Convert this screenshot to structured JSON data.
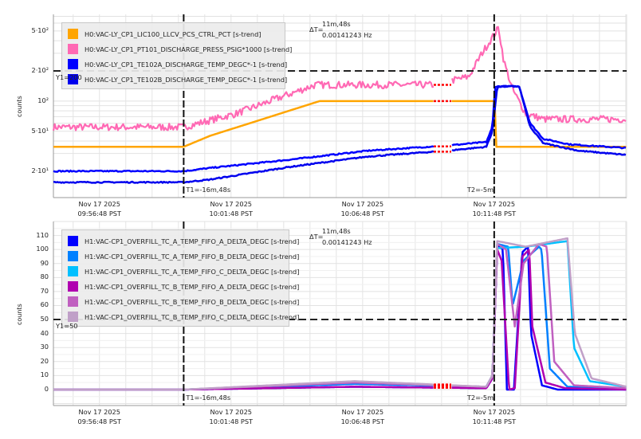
{
  "chart_data": [
    {
      "type": "line",
      "yscale": "log",
      "ylabel": "counts",
      "ylim": [
        10.9,
        733
      ],
      "xlim": [
        "09:55:03",
        "10:16:50"
      ],
      "grid": true,
      "legend_position": "top-left",
      "x_ticks": [
        {
          "date": "Nov 17 2025",
          "time": "09:56:48 PST",
          "t": "09:56:48"
        },
        {
          "date": "Nov 17 2025",
          "time": "10:01:48 PST",
          "t": "10:01:48"
        },
        {
          "date": "Nov 17 2025",
          "time": "10:06:48 PST",
          "t": "10:06:48"
        },
        {
          "date": "Nov 17 2025",
          "time": "10:11:48 PST",
          "t": "10:11:48"
        }
      ],
      "y_ticks": [
        {
          "label": "5·10²",
          "v": 500
        },
        {
          "label": "2·10²",
          "v": 200
        },
        {
          "label": "10²",
          "v": 100
        },
        {
          "label": "5·10¹",
          "v": 50
        },
        {
          "label": "2·10¹",
          "v": 20
        }
      ],
      "cursors": {
        "t1": "10:00:00",
        "t2": "10:11:48",
        "y1": 200,
        "t1_label": "T1=-16m,48s",
        "t2_label": "T2=-5m",
        "y1_label": "Y1=200",
        "dt_label": "ΔT=",
        "dt_value": "11m,48s",
        "dt_freq": "0.00141243 Hz"
      },
      "gap": [
        "10:09:30",
        "10:10:10"
      ],
      "series": [
        {
          "name": "H0:VAC-LY_CP1_LIC100_LLCV_PCS_CTRL_PCT [s-trend]",
          "color": "#ffa500",
          "noise": 0,
          "points": [
            [
              "09:55:03",
              35
            ],
            [
              "10:00:00",
              35
            ],
            [
              "10:01:00",
              45
            ],
            [
              "10:02:30",
              60
            ],
            [
              "10:04:00",
              80
            ],
            [
              "10:05:10",
              100
            ],
            [
              "10:11:50",
              100
            ],
            [
              "10:11:52",
              35
            ],
            [
              "10:16:50",
              35
            ]
          ]
        },
        {
          "name": "H0:VAC-LY_CP1_PT101_DISCHARGE_PRESS_PSIG*1000 [s-trend]",
          "color": "#ff69b4",
          "noise": 0.035,
          "points": [
            [
              "09:55:03",
              55
            ],
            [
              "10:00:00",
              55
            ],
            [
              "10:02:00",
              75
            ],
            [
              "10:03:30",
              105
            ],
            [
              "10:05:00",
              145
            ],
            [
              "10:09:30",
              145
            ],
            [
              "10:10:10",
              160
            ],
            [
              "10:10:50",
              175
            ],
            [
              "10:11:20",
              300
            ],
            [
              "10:11:48",
              460
            ],
            [
              "10:11:58",
              540
            ],
            [
              "10:12:10",
              250
            ],
            [
              "10:12:30",
              130
            ],
            [
              "10:13:00",
              75
            ],
            [
              "10:13:40",
              66
            ],
            [
              "10:16:50",
              66
            ]
          ]
        },
        {
          "name": "H0:VAC-LY_CP1_TE102A_DISCHARGE_TEMP_DEGC*-1 [s-trend]",
          "color": "#0000ff",
          "noise": 0.006,
          "points": [
            [
              "09:55:03",
              20
            ],
            [
              "10:00:00",
              20
            ],
            [
              "10:01:00",
              21.5
            ],
            [
              "10:04:00",
              26
            ],
            [
              "10:07:00",
              32
            ],
            [
              "10:10:00",
              36
            ],
            [
              "10:11:30",
              39
            ],
            [
              "10:11:44",
              55
            ],
            [
              "10:11:50",
              140
            ],
            [
              "10:12:45",
              140
            ],
            [
              "10:13:10",
              60
            ],
            [
              "10:13:40",
              42
            ],
            [
              "10:14:40",
              37
            ],
            [
              "10:16:50",
              34
            ]
          ]
        },
        {
          "name": "H0:VAC-LY_CP1_TE102B_DISCHARGE_TEMP_DEGC*-1 [s-trend]",
          "color": "#0000ee",
          "noise": 0.006,
          "points": [
            [
              "09:55:03",
              15.5
            ],
            [
              "10:00:00",
              15.5
            ],
            [
              "10:01:00",
              16.5
            ],
            [
              "10:04:00",
              22
            ],
            [
              "10:07:00",
              28
            ],
            [
              "10:10:00",
              32
            ],
            [
              "10:11:30",
              35
            ],
            [
              "10:11:44",
              50
            ],
            [
              "10:11:55",
              140
            ],
            [
              "10:12:45",
              140
            ],
            [
              "10:13:10",
              55
            ],
            [
              "10:13:40",
              38
            ],
            [
              "10:15:00",
              32
            ],
            [
              "10:16:50",
              29
            ]
          ]
        }
      ]
    },
    {
      "type": "line",
      "yscale": "linear",
      "ylabel": "counts",
      "ylim": [
        -11.4,
        120
      ],
      "xlim": [
        "09:55:03",
        "10:16:50"
      ],
      "grid": true,
      "legend_position": "top-left",
      "x_ticks": [
        {
          "date": "Nov 17 2025",
          "time": "09:56:48 PST",
          "t": "09:56:48"
        },
        {
          "date": "Nov 17 2025",
          "time": "10:01:48 PST",
          "t": "10:01:48"
        },
        {
          "date": "Nov 17 2025",
          "time": "10:06:48 PST",
          "t": "10:06:48"
        },
        {
          "date": "Nov 17 2025",
          "time": "10:11:48 PST",
          "t": "10:11:48"
        }
      ],
      "y_ticks": [
        {
          "label": "110",
          "v": 110
        },
        {
          "label": "100",
          "v": 100
        },
        {
          "label": "90",
          "v": 90
        },
        {
          "label": "80",
          "v": 80
        },
        {
          "label": "70",
          "v": 70
        },
        {
          "label": "60",
          "v": 60
        },
        {
          "label": "50",
          "v": 50
        },
        {
          "label": "40",
          "v": 40
        },
        {
          "label": "30",
          "v": 30
        },
        {
          "label": "20",
          "v": 20
        },
        {
          "label": "10",
          "v": 10
        },
        {
          "label": "0",
          "v": 0
        }
      ],
      "cursors": {
        "t1": "10:00:00",
        "t2": "10:11:48",
        "y1": 50,
        "t1_label": "T1=-16m,48s",
        "t2_label": "T2=-5m",
        "y1_label": "Y1=50",
        "dt_label": "ΔT=",
        "dt_value": "11m,48s",
        "dt_freq": "0.00141243 Hz"
      },
      "gap": [
        "10:09:30",
        "10:10:10"
      ],
      "series": [
        {
          "name": "H1:VAC-CP1_OVERFILL_TC_A_TEMP_FIFO_A_DELTA_DEGC [s-trend]",
          "color": "#0000ff",
          "noise": 0,
          "points": [
            [
              "09:55:03",
              0
            ],
            [
              "10:00:00",
              0
            ],
            [
              "10:06:30",
              2
            ],
            [
              "10:11:30",
              1
            ],
            [
              "10:11:44",
              8
            ],
            [
              "10:11:55",
              103
            ],
            [
              "10:12:08",
              100
            ],
            [
              "10:12:17",
              0
            ],
            [
              "10:12:33",
              0
            ],
            [
              "10:12:52",
              98
            ],
            [
              "10:13:05",
              102
            ],
            [
              "10:13:12",
              40
            ],
            [
              "10:13:37",
              3
            ],
            [
              "10:14:13",
              0
            ],
            [
              "10:16:50",
              0
            ]
          ]
        },
        {
          "name": "H1:VAC-CP1_OVERFILL_TC_A_TEMP_FIFO_B_DELTA_DEGC [s-trend]",
          "color": "#0080ff",
          "noise": 0,
          "points": [
            [
              "09:55:03",
              0
            ],
            [
              "10:00:00",
              0
            ],
            [
              "10:06:30",
              4
            ],
            [
              "10:11:30",
              2
            ],
            [
              "10:11:44",
              10
            ],
            [
              "10:11:55",
              104
            ],
            [
              "10:12:20",
              102
            ],
            [
              "10:12:30",
              60
            ],
            [
              "10:12:55",
              92
            ],
            [
              "10:13:30",
              102
            ],
            [
              "10:13:36",
              100
            ],
            [
              "10:13:55",
              15
            ],
            [
              "10:14:35",
              2
            ],
            [
              "10:16:50",
              1
            ]
          ]
        },
        {
          "name": "H1:VAC-CP1_OVERFILL_TC_A_TEMP_FIFO_C_DELTA_DEGC [s-trend]",
          "color": "#00c0ff",
          "noise": 0,
          "points": [
            [
              "09:55:03",
              0
            ],
            [
              "10:00:00",
              0
            ],
            [
              "10:06:30",
              5
            ],
            [
              "10:11:30",
              2
            ],
            [
              "10:11:44",
              10
            ],
            [
              "10:11:55",
              101
            ],
            [
              "10:13:00",
              102
            ],
            [
              "10:14:35",
              106
            ],
            [
              "10:14:50",
              30
            ],
            [
              "10:15:26",
              6
            ],
            [
              "10:16:50",
              2
            ]
          ]
        },
        {
          "name": "H1:VAC-CP1_OVERFILL_TC_B_TEMP_FIFO_A_DELTA_DEGC [s-trend]",
          "color": "#b000b0",
          "noise": 0,
          "points": [
            [
              "09:55:03",
              0
            ],
            [
              "10:00:00",
              0
            ],
            [
              "10:06:30",
              2
            ],
            [
              "10:11:30",
              1
            ],
            [
              "10:11:44",
              8
            ],
            [
              "10:11:55",
              100
            ],
            [
              "10:12:05",
              92
            ],
            [
              "10:12:22",
              0
            ],
            [
              "10:12:35",
              1
            ],
            [
              "10:12:52",
              95
            ],
            [
              "10:13:08",
              100
            ],
            [
              "10:13:15",
              45
            ],
            [
              "10:13:45",
              5
            ],
            [
              "10:14:30",
              1
            ],
            [
              "10:16:50",
              0
            ]
          ]
        },
        {
          "name": "H1:VAC-CP1_OVERFILL_TC_B_TEMP_FIFO_B_DELTA_DEGC [s-trend]",
          "color": "#c060c0",
          "noise": 0,
          "points": [
            [
              "09:55:03",
              0
            ],
            [
              "10:00:00",
              0
            ],
            [
              "10:06:30",
              5
            ],
            [
              "10:11:30",
              2
            ],
            [
              "10:11:44",
              10
            ],
            [
              "10:11:55",
              104
            ],
            [
              "10:12:15",
              100
            ],
            [
              "10:12:35",
              45
            ],
            [
              "10:12:55",
              90
            ],
            [
              "10:13:30",
              104
            ],
            [
              "10:13:48",
              102
            ],
            [
              "10:14:05",
              20
            ],
            [
              "10:14:50",
              3
            ],
            [
              "10:16:50",
              1
            ]
          ]
        },
        {
          "name": "H1:VAC-CP1_OVERFILL_TC_B_TEMP_FIFO_C_DELTA_DEGC [s-trend]",
          "color": "#c0a0c8",
          "noise": 0,
          "points": [
            [
              "09:55:03",
              0
            ],
            [
              "10:00:00",
              0
            ],
            [
              "10:06:30",
              6
            ],
            [
              "10:11:30",
              2
            ],
            [
              "10:11:44",
              10
            ],
            [
              "10:11:55",
              106
            ],
            [
              "10:13:00",
              102
            ],
            [
              "10:14:35",
              108
            ],
            [
              "10:14:52",
              40
            ],
            [
              "10:15:30",
              8
            ],
            [
              "10:16:50",
              2
            ]
          ]
        }
      ]
    }
  ]
}
